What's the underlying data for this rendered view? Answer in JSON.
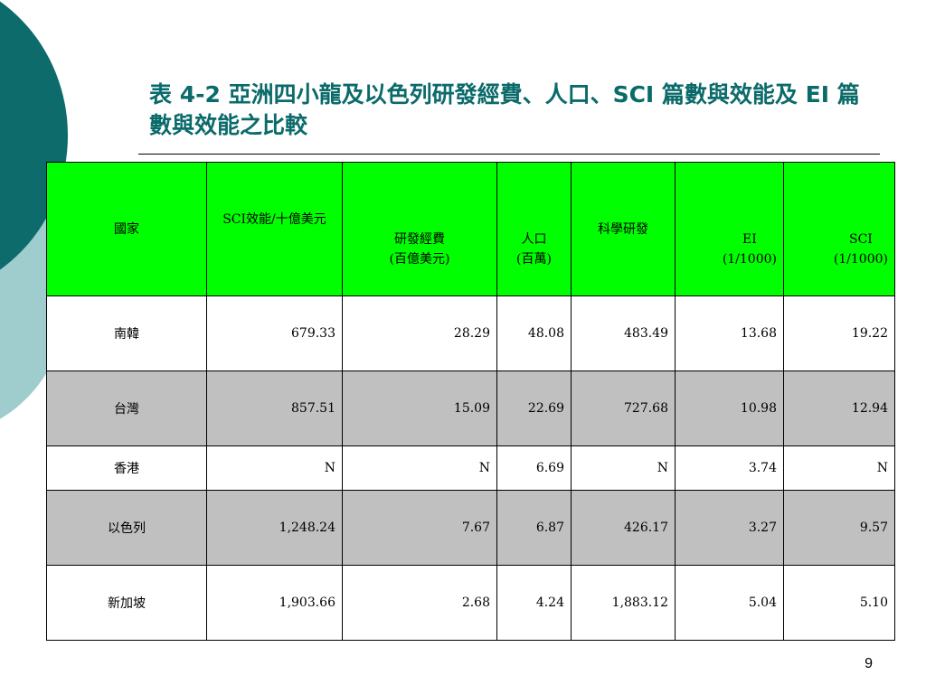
{
  "slide": {
    "title": "表 4-2 亞洲四小龍及以色列研發經費、人口、SCI 篇數與效能及 EI 篇數與效能之比較",
    "page_number": "9"
  },
  "table": {
    "headers": [
      "國家",
      "SCI效能/十億美元",
      "研發經費\n(百億美元)",
      "人口\n(百萬)",
      "科學研發",
      "EI\n(1/1000)",
      "SCI\n(1/1000)"
    ],
    "rows": [
      [
        "南韓",
        "679.33",
        "28.29",
        "48.08",
        "483.49",
        "13.68",
        "19.22"
      ],
      [
        "台灣",
        "857.51",
        "15.09",
        "22.69",
        "727.68",
        "10.98",
        "12.94"
      ],
      [
        "香港",
        "N",
        "N",
        "6.69",
        "N",
        "3.74",
        "N"
      ],
      [
        "以色列",
        "1,248.24",
        "7.67",
        "6.87",
        "426.17",
        "3.27",
        "9.57"
      ],
      [
        "新加坡",
        "1,903.66",
        "2.68",
        "4.24",
        "1,883.12",
        "5.04",
        "5.10"
      ]
    ]
  },
  "colors": {
    "header_bg": "#00ff00",
    "row_gray": "#c0c0c0",
    "title_color": "#0b6a6a",
    "deco_dark": "#0d6b6b",
    "deco_light": "#9fcccd"
  }
}
